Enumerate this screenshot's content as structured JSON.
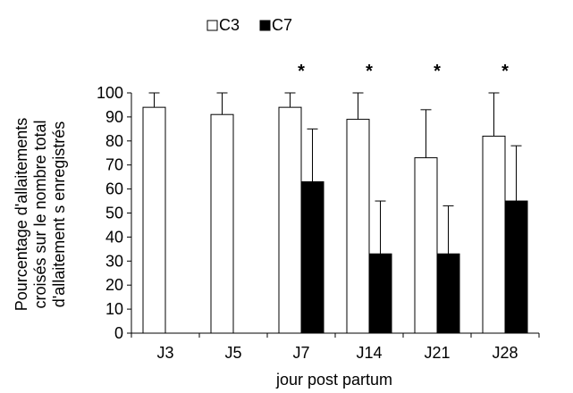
{
  "chart_data": {
    "type": "bar",
    "title": "",
    "xlabel": "jour post partum",
    "ylabel": "Pourcentage d'allaitements croisés sur le nombre total d'allaitement s enregistrés",
    "ylabel_lines": [
      "Pourcentage d'allaitements",
      "croisés sur le nombre total",
      "d'allaitement s enregistrés"
    ],
    "categories": [
      "J3",
      "J5",
      "J7",
      "J14",
      "J21",
      "J28"
    ],
    "series": [
      {
        "name": "C3",
        "fill": "#ffffff",
        "values": [
          94,
          91,
          94,
          89,
          73,
          82
        ],
        "error_upper": [
          100,
          100,
          100,
          100,
          93,
          100
        ]
      },
      {
        "name": "C7",
        "fill": "#000000",
        "values": [
          0,
          0,
          63,
          33,
          33,
          55
        ],
        "error_upper": [
          null,
          null,
          85,
          55,
          53,
          78
        ]
      }
    ],
    "significance": [
      "",
      "",
      "*",
      "*",
      "*",
      "*"
    ],
    "ylim": [
      0,
      100
    ],
    "yticks": [
      0,
      10,
      20,
      30,
      40,
      50,
      60,
      70,
      80,
      90,
      100
    ],
    "legend_position": "top-center",
    "grid": false
  }
}
